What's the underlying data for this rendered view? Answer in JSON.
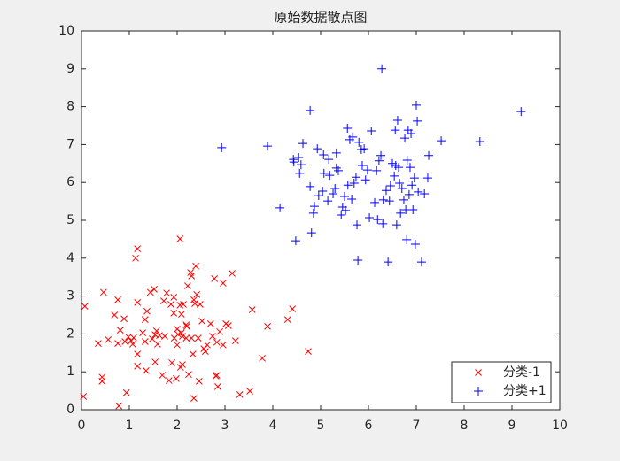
{
  "chart_data": {
    "type": "scatter",
    "title": "原始数据散点图",
    "xlim": [
      0,
      10
    ],
    "ylim": [
      0,
      10
    ],
    "xticks": [
      0,
      1,
      2,
      3,
      4,
      5,
      6,
      7,
      8,
      9,
      10
    ],
    "yticks": [
      0,
      1,
      2,
      3,
      4,
      5,
      6,
      7,
      8,
      9,
      10
    ],
    "legend": "lower right",
    "series": [
      {
        "name": "分类-1",
        "color": "#ff0000",
        "marker": "x",
        "x": [
          0.04,
          0.07,
          0.35,
          0.43,
          0.43,
          0.46,
          0.56,
          0.69,
          0.76,
          0.76,
          0.78,
          0.81,
          0.89,
          0.91,
          0.94,
          0.98,
          1.04,
          1.07,
          1.09,
          1.13,
          1.17,
          1.17,
          1.17,
          1.17,
          1.28,
          1.33,
          1.33,
          1.35,
          1.37,
          1.44,
          1.48,
          1.52,
          1.54,
          1.54,
          1.57,
          1.59,
          1.63,
          1.69,
          1.72,
          1.74,
          1.78,
          1.83,
          1.87,
          1.89,
          1.93,
          1.93,
          1.94,
          1.98,
          2.0,
          2.0,
          2.02,
          2.06,
          2.06,
          2.07,
          2.09,
          2.09,
          2.11,
          2.11,
          2.13,
          2.19,
          2.19,
          2.2,
          2.22,
          2.24,
          2.28,
          2.3,
          2.3,
          2.33,
          2.35,
          2.35,
          2.37,
          2.39,
          2.41,
          2.44,
          2.46,
          2.48,
          2.52,
          2.56,
          2.59,
          2.63,
          2.7,
          2.74,
          2.78,
          2.81,
          2.83,
          2.83,
          2.85,
          2.89,
          2.96,
          2.96,
          3.02,
          3.07,
          3.15,
          3.22,
          3.31,
          3.52,
          3.57,
          3.78,
          3.89,
          4.31,
          4.41,
          4.74
        ],
        "values": [
          0.35,
          2.73,
          1.75,
          0.86,
          0.75,
          3.1,
          1.85,
          2.5,
          2.9,
          1.75,
          0.1,
          2.1,
          2.4,
          1.8,
          0.45,
          1.92,
          1.82,
          1.73,
          1.9,
          4.0,
          4.25,
          1.47,
          1.15,
          2.83,
          2.03,
          1.8,
          2.38,
          1.03,
          2.6,
          3.1,
          1.87,
          3.18,
          1.98,
          1.26,
          2.08,
          1.73,
          1.96,
          0.91,
          2.87,
          1.94,
          3.08,
          0.77,
          2.78,
          1.24,
          2.97,
          2.55,
          1.89,
          0.82,
          2.13,
          1.71,
          1.99,
          4.51,
          2.76,
          1.12,
          2.52,
          2.03,
          1.94,
          1.19,
          2.78,
          1.89,
          2.24,
          2.2,
          3.27,
          0.93,
          3.62,
          1.89,
          3.53,
          1.47,
          0.3,
          2.9,
          2.8,
          3.79,
          3.04,
          1.89,
          0.75,
          2.78,
          2.34,
          1.61,
          1.54,
          1.71,
          2.27,
          1.94,
          3.46,
          0.89,
          0.91,
          1.78,
          0.61,
          2.06,
          1.71,
          3.34,
          2.27,
          2.22,
          3.6,
          1.82,
          0.4,
          0.49,
          2.64,
          1.36,
          2.2,
          2.38,
          2.66,
          1.54
        ]
      },
      {
        "name": "分类+1",
        "color": "#0000ff",
        "marker": "+",
        "x": [
          2.93,
          3.89,
          4.15,
          4.43,
          4.44,
          4.48,
          4.54,
          4.56,
          4.59,
          4.63,
          4.78,
          4.78,
          4.81,
          4.85,
          4.87,
          4.93,
          4.96,
          5.04,
          5.06,
          5.07,
          5.15,
          5.17,
          5.19,
          5.26,
          5.3,
          5.33,
          5.33,
          5.37,
          5.43,
          5.46,
          5.5,
          5.52,
          5.56,
          5.57,
          5.61,
          5.65,
          5.67,
          5.7,
          5.74,
          5.76,
          5.78,
          5.8,
          5.85,
          5.87,
          5.91,
          5.94,
          5.98,
          6.02,
          6.06,
          6.13,
          6.17,
          6.19,
          6.22,
          6.26,
          6.28,
          6.3,
          6.31,
          6.37,
          6.41,
          6.44,
          6.46,
          6.5,
          6.54,
          6.56,
          6.57,
          6.59,
          6.61,
          6.63,
          6.65,
          6.67,
          6.7,
          6.74,
          6.76,
          6.78,
          6.8,
          6.81,
          6.83,
          6.85,
          6.87,
          6.89,
          6.91,
          6.93,
          6.96,
          6.98,
          7.0,
          7.02,
          7.04,
          7.11,
          7.17,
          7.24,
          7.26,
          7.52,
          8.33,
          9.19
        ],
        "values": [
          6.92,
          6.96,
          5.33,
          6.61,
          6.54,
          4.46,
          6.66,
          6.24,
          6.47,
          7.03,
          7.9,
          5.89,
          4.67,
          5.19,
          5.37,
          6.89,
          5.65,
          5.77,
          6.73,
          6.24,
          5.51,
          6.61,
          6.19,
          5.7,
          5.84,
          6.78,
          6.38,
          6.31,
          5.14,
          5.35,
          5.63,
          5.26,
          7.43,
          5.93,
          7.13,
          5.56,
          7.2,
          5.98,
          6.14,
          4.88,
          3.95,
          7.06,
          6.87,
          6.45,
          6.89,
          6.07,
          6.33,
          5.07,
          7.36,
          5.47,
          6.31,
          5.02,
          6.57,
          6.71,
          9.0,
          4.91,
          5.54,
          5.79,
          3.9,
          5.51,
          5.91,
          6.5,
          6.17,
          7.38,
          6.45,
          4.88,
          7.64,
          6.4,
          5.98,
          5.19,
          5.84,
          5.54,
          7.17,
          5.28,
          4.49,
          6.59,
          7.38,
          5.68,
          6.4,
          7.29,
          5.93,
          5.28,
          6.12,
          4.37,
          8.04,
          7.62,
          5.75,
          3.9,
          5.7,
          6.12,
          6.71,
          7.1,
          7.08,
          7.87
        ]
      }
    ]
  }
}
